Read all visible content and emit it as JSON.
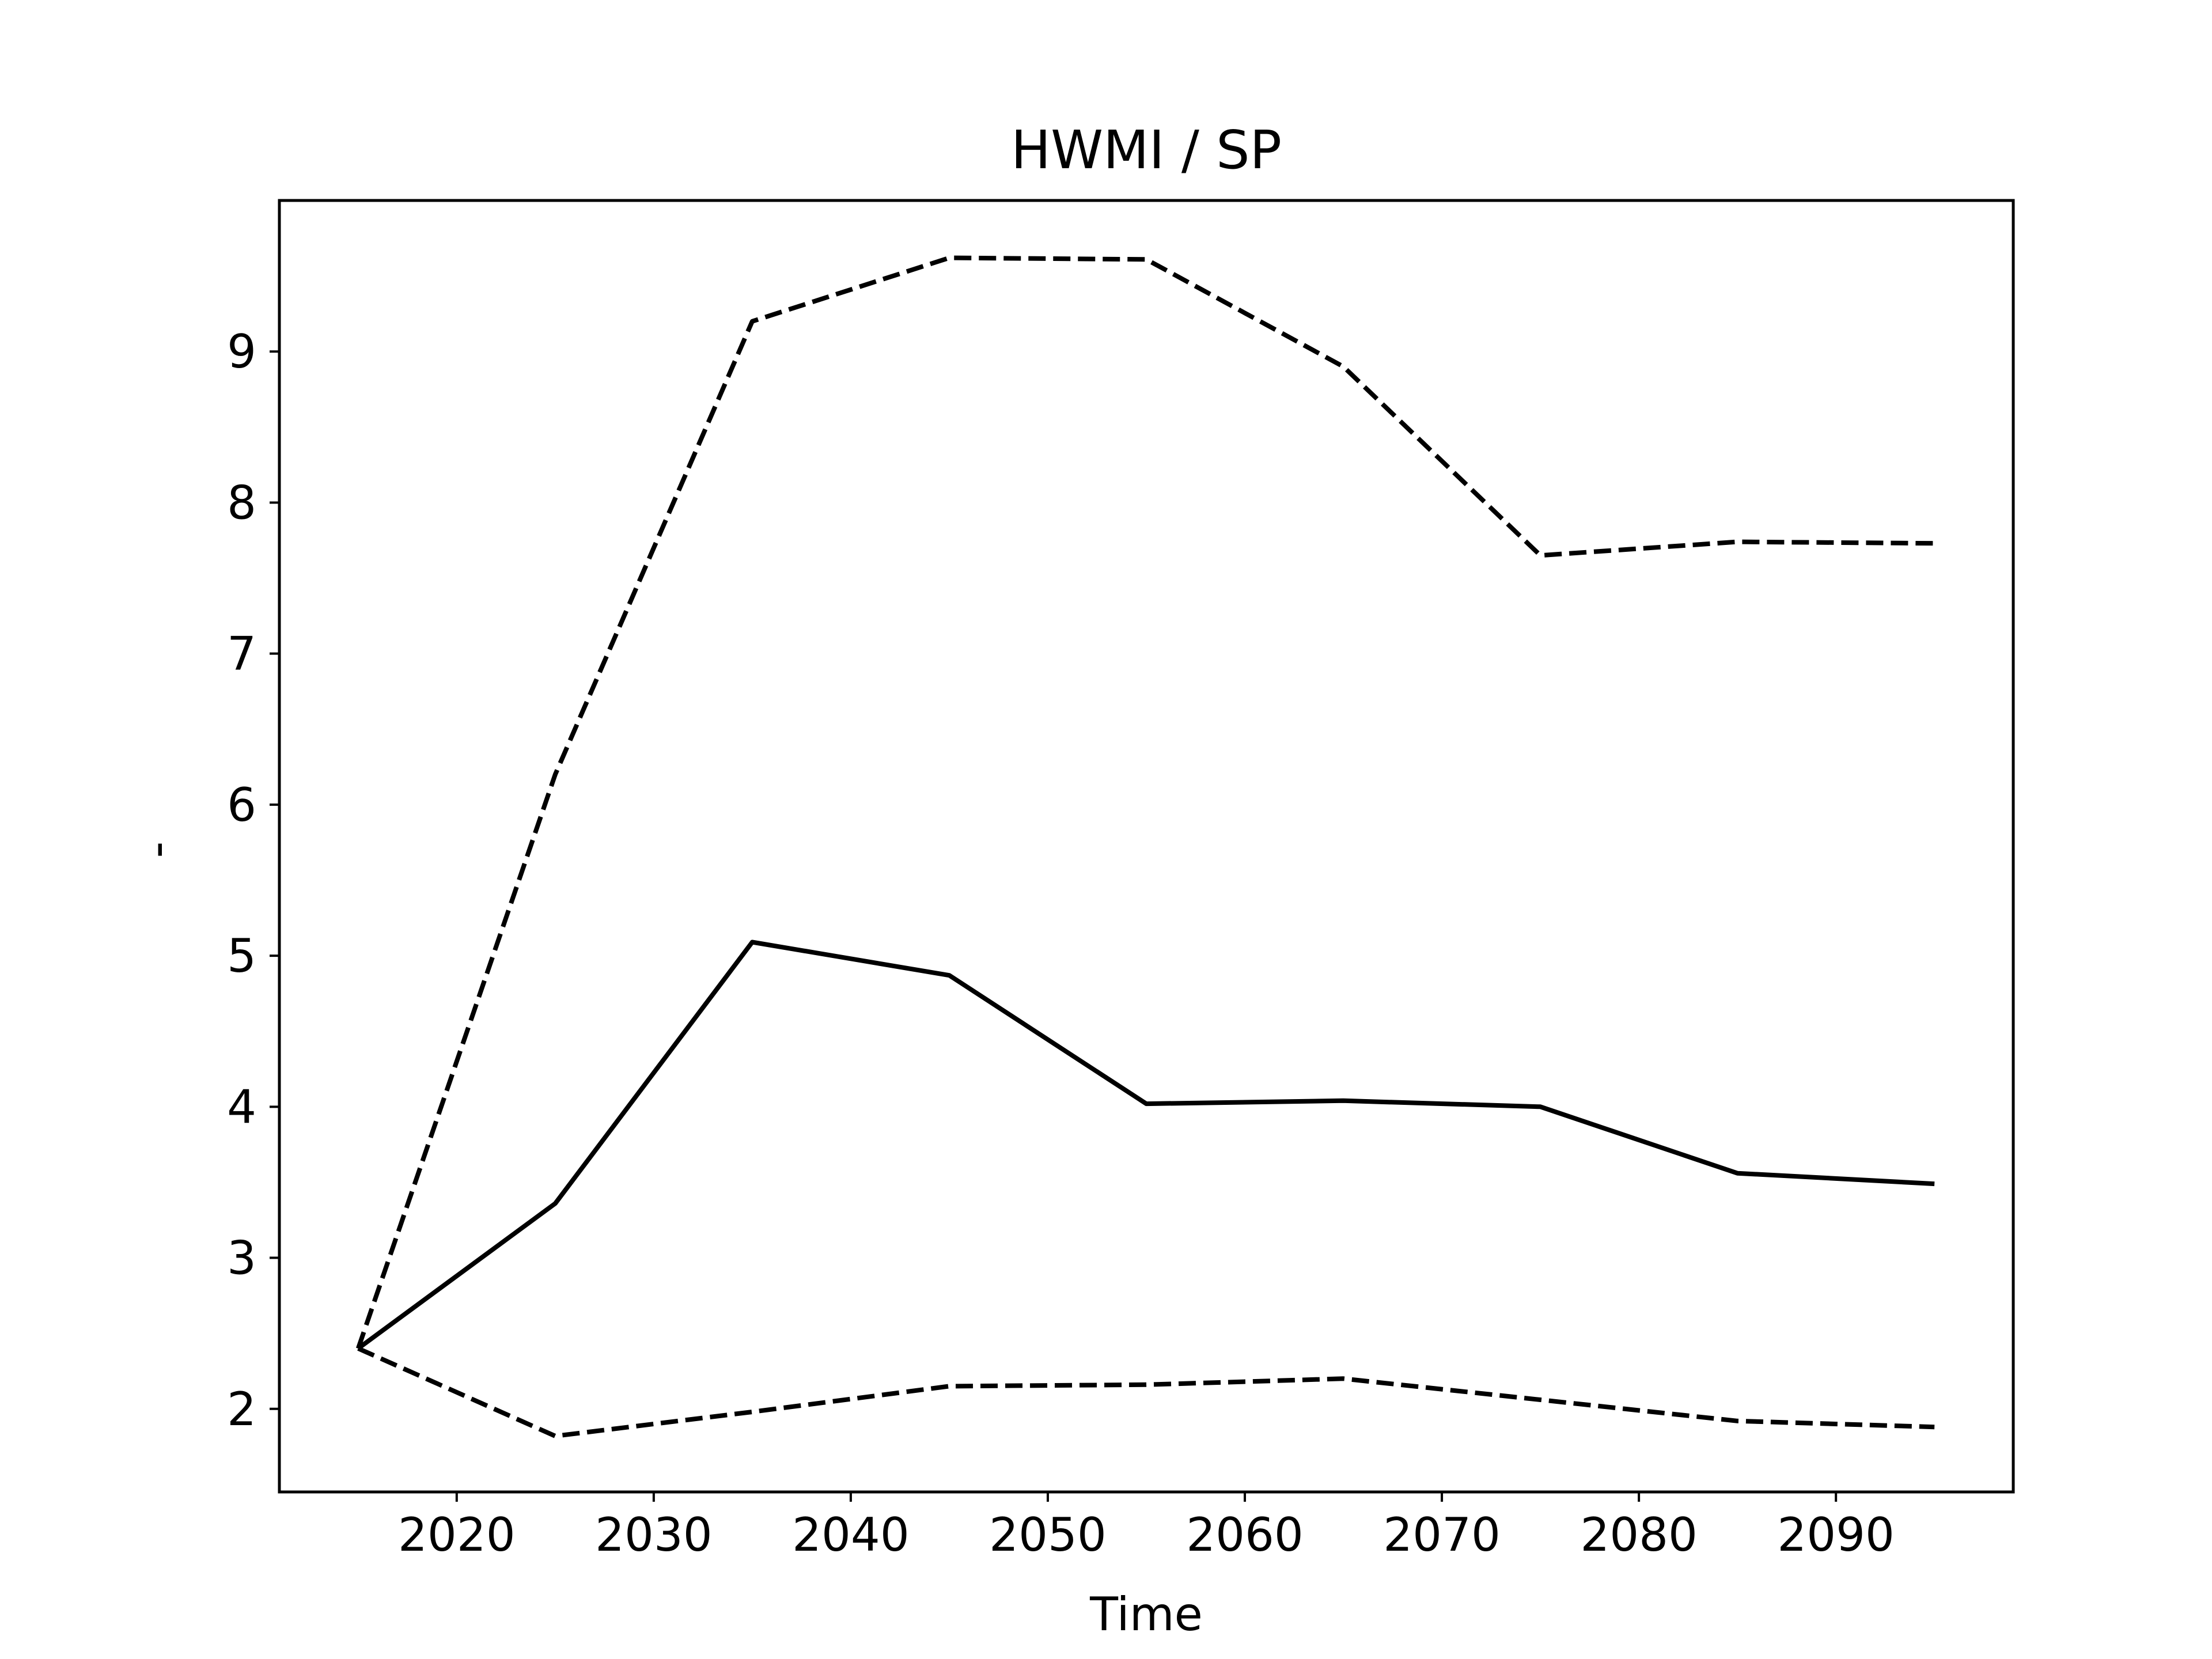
{
  "chart_data": {
    "type": "line",
    "title": "HWMI / SP",
    "xlabel": "Time",
    "ylabel": "-",
    "xlim": [
      2011,
      2099
    ],
    "ylim": [
      1.45,
      10.0
    ],
    "xticks": [
      2020,
      2030,
      2040,
      2050,
      2060,
      2070,
      2080,
      2090
    ],
    "yticks": [
      2,
      3,
      4,
      5,
      6,
      7,
      8,
      9
    ],
    "grid": false,
    "legend": "none",
    "x": [
      2015,
      2025,
      2035,
      2045,
      2055,
      2065,
      2075,
      2085,
      2095
    ],
    "series": [
      {
        "style": "dashed",
        "values": [
          2.4,
          6.2,
          9.2,
          9.62,
          9.61,
          8.9,
          7.65,
          7.74,
          7.73
        ]
      },
      {
        "style": "solid",
        "values": [
          2.4,
          3.36,
          5.09,
          4.87,
          4.02,
          4.04,
          4.0,
          3.56,
          3.49
        ]
      },
      {
        "style": "dashed",
        "values": [
          2.4,
          1.82,
          1.98,
          2.15,
          2.16,
          2.2,
          2.06,
          1.92,
          1.88
        ]
      }
    ],
    "colors": {
      "line": "#000000",
      "axes": "#000000",
      "background": "#ffffff"
    }
  }
}
